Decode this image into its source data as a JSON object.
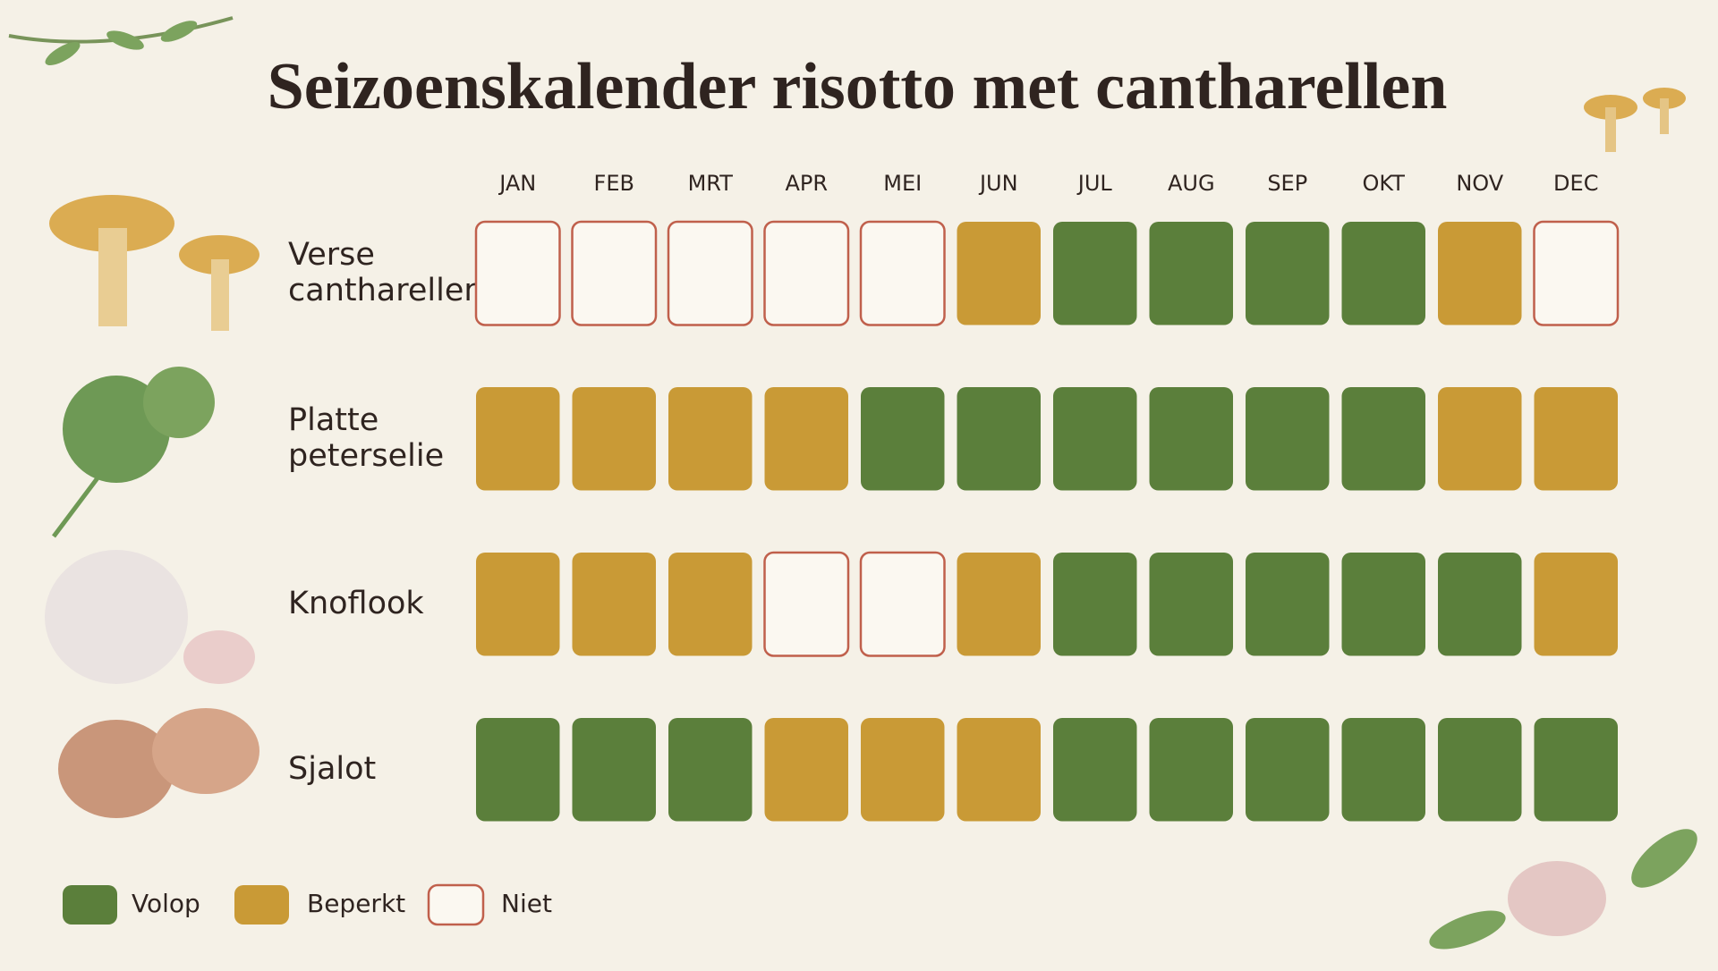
{
  "title": "Seizoenskalender risotto met cantharellen",
  "months": [
    "JAN",
    "FEB",
    "MRT",
    "APR",
    "MEI",
    "JUN",
    "JUL",
    "AUG",
    "SEP",
    "OKT",
    "NOV",
    "DEC"
  ],
  "legend": [
    {
      "name": "Volop",
      "color": "#5b7f3b"
    },
    {
      "name": "Beperkt",
      "color": "#c99a36"
    },
    {
      "name": "Niet",
      "color": "#c0604c"
    }
  ],
  "rows": [
    {
      "label": [
        "Verse",
        "cantharellen"
      ],
      "cells": [
        2,
        2,
        2,
        2,
        2,
        1,
        0,
        0,
        0,
        0,
        1,
        2
      ]
    },
    {
      "label": [
        "Platte",
        "peterselie"
      ],
      "cells": [
        1,
        1,
        1,
        1,
        0,
        0,
        0,
        0,
        0,
        0,
        1,
        1
      ]
    },
    {
      "label": [
        "Knoflook"
      ],
      "cells": [
        1,
        1,
        1,
        2,
        2,
        1,
        0,
        0,
        0,
        0,
        0,
        1
      ]
    },
    {
      "label": [
        "Sjalot"
      ],
      "cells": [
        0,
        0,
        0,
        1,
        1,
        1,
        0,
        0,
        0,
        0,
        0,
        0
      ]
    }
  ]
}
